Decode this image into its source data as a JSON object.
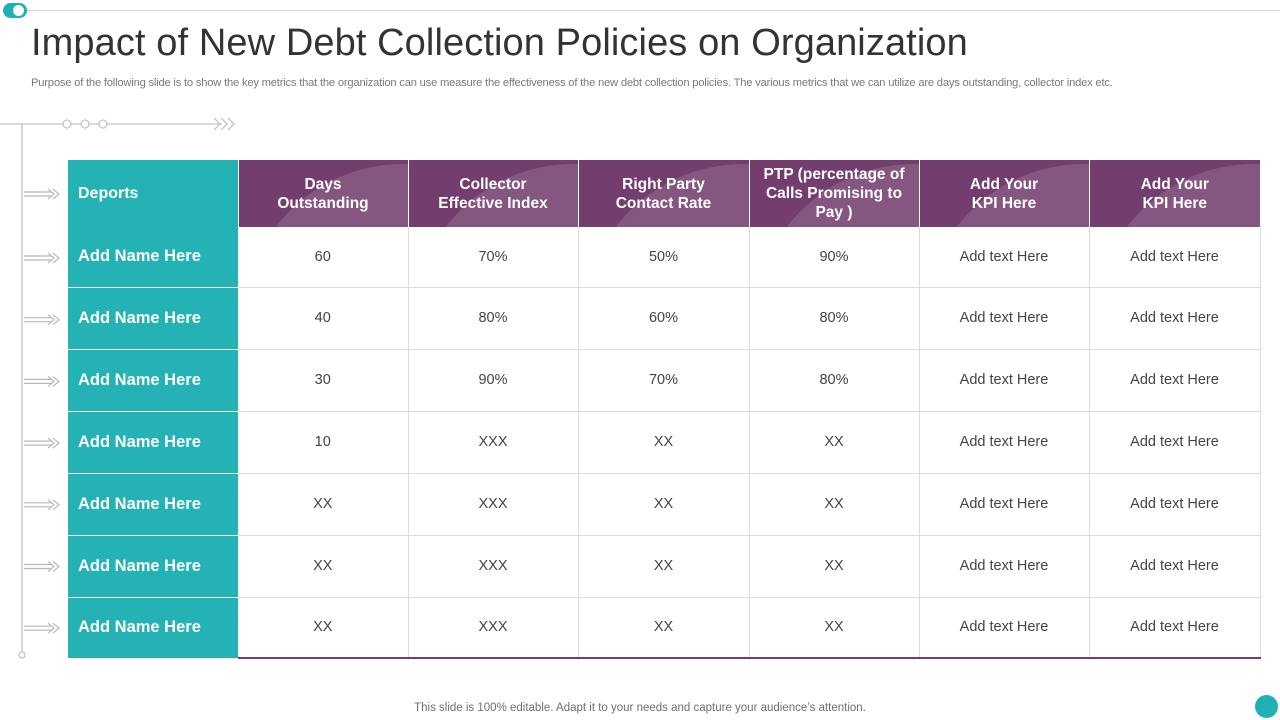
{
  "slide": {
    "title": "Impact of New Debt Collection Policies on Organization",
    "subtitle": "Purpose of the following slide is to show the key metrics that the organization can use measure the effectiveness of the new debt collection policies. The various metrics that we can utilize are days outstanding, collector index etc.",
    "footer": "This slide is 100% editable. Adapt it to your needs and capture your audience’s attention."
  },
  "colors": {
    "teal": "#24b2b5",
    "purple": "#733d6d",
    "grid": "#dcdcdc"
  },
  "table": {
    "corner_label": "Deports",
    "headers": [
      "Days\nOutstanding",
      "Collector\nEffective  Index",
      "Right Party\nContact Rate",
      "PTP (percentage of\nCalls Promising to\nPay )",
      "Add Your\nKPI Here",
      "Add Your\nKPI Here"
    ],
    "rows": [
      {
        "name": "Add Name Here",
        "values": [
          "60",
          "70%",
          "50%",
          "90%",
          "Add text Here",
          "Add text Here"
        ]
      },
      {
        "name": "Add Name Here",
        "values": [
          "40",
          "80%",
          "60%",
          "80%",
          "Add text Here",
          "Add text Here"
        ]
      },
      {
        "name": "Add Name Here",
        "values": [
          "30",
          "90%",
          "70%",
          "80%",
          "Add text Here",
          "Add text Here"
        ]
      },
      {
        "name": "Add Name Here",
        "values": [
          "10",
          "XXX",
          "XX",
          "XX",
          "Add text Here",
          "Add text Here"
        ]
      },
      {
        "name": "Add Name Here",
        "values": [
          "XX",
          "XXX",
          "XX",
          "XX",
          "Add text Here",
          "Add text Here"
        ]
      },
      {
        "name": "Add Name Here",
        "values": [
          "XX",
          "XXX",
          "XX",
          "XX",
          "Add text Here",
          "Add text Here"
        ]
      },
      {
        "name": "Add Name Here",
        "values": [
          "XX",
          "XXX",
          "XX",
          "XX",
          "Add text Here",
          "Add text Here"
        ]
      }
    ]
  }
}
